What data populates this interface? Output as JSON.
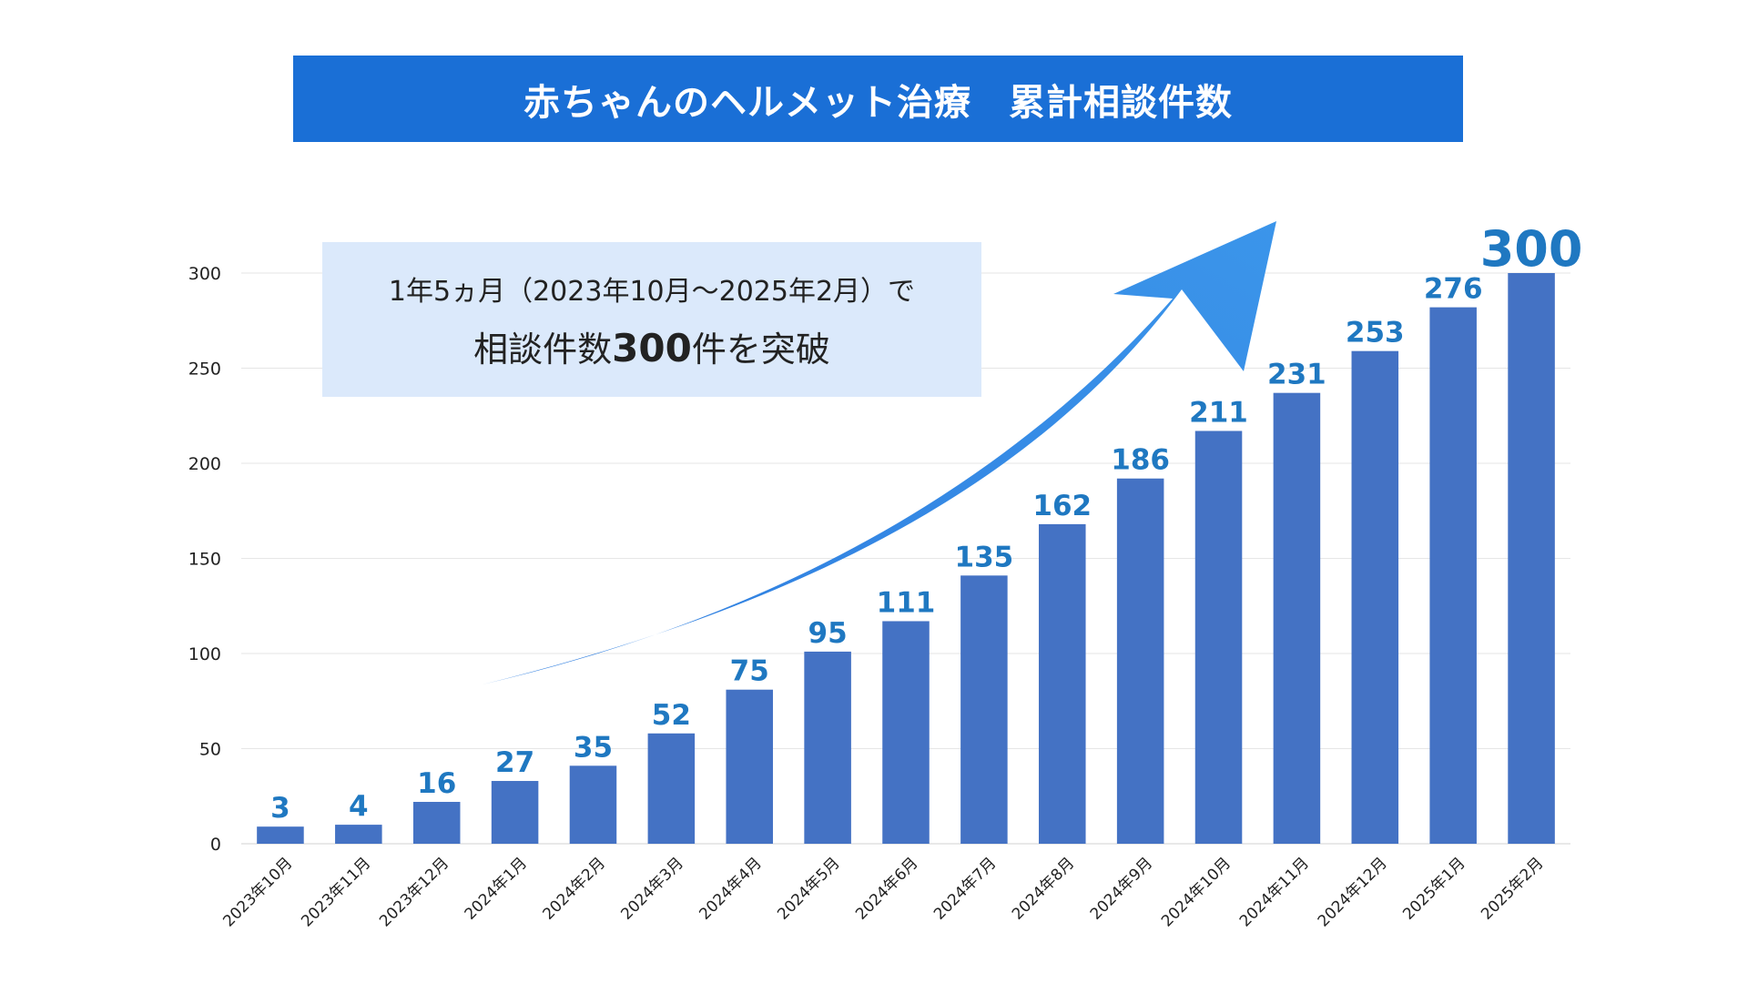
{
  "title": "赤ちゃんのヘルメット治療　累計相談件数",
  "callout": {
    "line1": "1年5ヵ月（2023年10月〜2025年2月）で",
    "line2_prefix": "相談件数",
    "line2_number": "300",
    "line2_suffix": "件を突破"
  },
  "colors": {
    "banner": "#1a6fd6",
    "bar": "#4472c4",
    "label": "#1f78c1",
    "callout_bg": "#dbe9fb",
    "arrow_start": "#2f7ddf",
    "arrow_end": "#3b95ea",
    "grid": "#e6e6e6"
  },
  "icons": {
    "arrow": "upward-trend-arrow-icon"
  },
  "chart_data": {
    "type": "bar",
    "categories": [
      "2023年10月",
      "2023年11月",
      "2023年12月",
      "2024年1月",
      "2024年2月",
      "2024年3月",
      "2024年4月",
      "2024年5月",
      "2024年6月",
      "2024年7月",
      "2024年8月",
      "2024年9月",
      "2024年10月",
      "2024年11月",
      "2024年12月",
      "2025年1月",
      "2025年2月"
    ],
    "values": [
      3,
      4,
      16,
      27,
      35,
      52,
      75,
      95,
      111,
      135,
      162,
      186,
      211,
      231,
      253,
      276,
      300
    ],
    "bar_heights": [
      9,
      10,
      22,
      33,
      41,
      58,
      81,
      101,
      117,
      141,
      168,
      192,
      217,
      237,
      259,
      282,
      300
    ],
    "ylim": [
      0,
      300
    ],
    "yticks": [
      0,
      50,
      100,
      150,
      200,
      250,
      300
    ],
    "grid": true,
    "xlabel": "",
    "ylabel": ""
  }
}
